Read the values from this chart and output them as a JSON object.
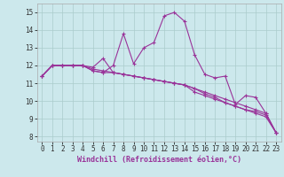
{
  "xlabel": "Windchill (Refroidissement éolien,°C)",
  "background_color": "#cce8ec",
  "grid_color": "#aacccc",
  "line_color": "#993399",
  "x_hours": [
    0,
    1,
    2,
    3,
    4,
    5,
    6,
    7,
    8,
    9,
    10,
    11,
    12,
    13,
    14,
    15,
    16,
    17,
    18,
    19,
    20,
    21,
    22,
    23
  ],
  "series": [
    [
      11.4,
      12.0,
      12.0,
      12.0,
      12.0,
      11.7,
      11.6,
      12.0,
      13.8,
      12.1,
      13.0,
      13.3,
      14.8,
      15.0,
      14.5,
      12.6,
      11.5,
      11.3,
      11.4,
      9.8,
      10.3,
      10.2,
      9.3,
      8.2
    ],
    [
      11.4,
      12.0,
      12.0,
      12.0,
      12.0,
      11.7,
      11.6,
      11.6,
      11.5,
      11.4,
      11.3,
      11.2,
      11.1,
      11.0,
      10.9,
      10.5,
      10.3,
      10.1,
      9.9,
      9.7,
      9.5,
      9.4,
      9.2,
      8.2
    ],
    [
      11.4,
      12.0,
      12.0,
      12.0,
      12.0,
      11.8,
      11.7,
      11.6,
      11.5,
      11.4,
      11.3,
      11.2,
      11.1,
      11.0,
      10.9,
      10.7,
      10.5,
      10.3,
      10.1,
      9.9,
      9.7,
      9.5,
      9.3,
      8.2
    ],
    [
      11.4,
      12.0,
      12.0,
      12.0,
      12.0,
      11.9,
      12.4,
      11.6,
      11.5,
      11.4,
      11.3,
      11.2,
      11.1,
      11.0,
      10.9,
      10.7,
      10.4,
      10.2,
      9.9,
      9.7,
      9.5,
      9.3,
      9.1,
      8.2
    ]
  ],
  "ylim": [
    7.7,
    15.5
  ],
  "yticks": [
    8,
    9,
    10,
    11,
    12,
    13,
    14,
    15
  ],
  "xlim": [
    -0.5,
    23.5
  ],
  "xlabel_color": "#993399",
  "xlabel_fontsize": 6.0,
  "tick_fontsize": 5.5,
  "linewidth": 0.8,
  "markersize": 3.5
}
